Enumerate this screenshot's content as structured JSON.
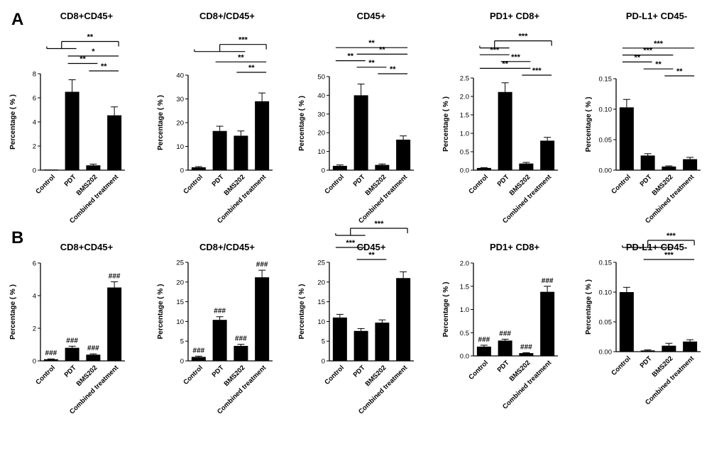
{
  "panels": [
    {
      "letter": "A"
    },
    {
      "letter": "B"
    }
  ],
  "chart_data": [
    {
      "panel": "A",
      "type": "bar",
      "title": "CD8+CD45+",
      "ylabel": "Percentage ( % )",
      "categories": [
        "Control",
        "PDT",
        "BMS202",
        "Combined treatment"
      ],
      "values": [
        0.05,
        6.5,
        0.4,
        4.55
      ],
      "errors": [
        0,
        1.0,
        0.1,
        0.7
      ],
      "ylim": [
        0,
        8
      ],
      "yticks": [
        "0",
        "2",
        "4",
        "6",
        "8"
      ],
      "bar_labels": [
        "",
        "",
        "",
        ""
      ],
      "comparisons": [
        {
          "from": 0,
          "to": 1,
          "to2": 3,
          "label": "**"
        },
        {
          "from": 1,
          "to": 3,
          "label": "*"
        },
        {
          "from": 1,
          "to": 2,
          "label": "**"
        },
        {
          "from": 2,
          "to": 3,
          "label": "**"
        }
      ]
    },
    {
      "panel": "A",
      "type": "bar",
      "title": "CD8+/CD45+",
      "ylabel": "Percentage ( % )",
      "categories": [
        "Control",
        "PDT",
        "BMS202",
        "Combined treatment"
      ],
      "values": [
        1.2,
        16.5,
        14.5,
        29
      ],
      "errors": [
        0.3,
        2.0,
        2.0,
        3.5
      ],
      "ylim": [
        0,
        40
      ],
      "yticks": [
        "0",
        "10",
        "20",
        "30",
        "40"
      ],
      "bar_labels": [
        "",
        "",
        "",
        ""
      ],
      "comparisons": [
        {
          "from": 0,
          "to": 2,
          "to2": 3,
          "label": "***"
        },
        {
          "from": 1,
          "to": 3,
          "label": "**"
        },
        {
          "from": 2,
          "to": 3,
          "label": "**"
        }
      ]
    },
    {
      "panel": "A",
      "type": "bar",
      "title": "CD45+",
      "ylabel": "Percentage ( % )",
      "categories": [
        "Control",
        "PDT",
        "BMS202",
        "Combined treatment"
      ],
      "values": [
        2.3,
        40,
        2.8,
        16.3
      ],
      "errors": [
        0.5,
        6.0,
        0.5,
        2.0
      ],
      "ylim": [
        0,
        50
      ],
      "yticks": [
        "0",
        "10",
        "20",
        "30",
        "40",
        "50"
      ],
      "bar_labels": [
        "",
        "",
        "",
        ""
      ],
      "comparisons": [
        {
          "from": 0,
          "to": 3,
          "label": "**"
        },
        {
          "from": 1,
          "to": 3,
          "label": "**"
        },
        {
          "from": 0,
          "to": 1,
          "label": "**"
        },
        {
          "from": 1,
          "to": 2,
          "label": "**"
        },
        {
          "from": 2,
          "to": 3,
          "label": "**"
        }
      ]
    },
    {
      "panel": "A",
      "type": "bar",
      "title": "PD1+ CD8+",
      "ylabel": "Percentage ( % )",
      "categories": [
        "Control",
        "PDT",
        "BMS202",
        "Combined treatment"
      ],
      "values": [
        0.06,
        2.12,
        0.18,
        0.8
      ],
      "errors": [
        0.01,
        0.25,
        0.03,
        0.09
      ],
      "ylim": [
        0,
        2.5
      ],
      "yticks": [
        "0.0",
        "0.5",
        "1.0",
        "1.5",
        "2.0",
        "2.5"
      ],
      "bar_labels": [
        "",
        "",
        "",
        ""
      ],
      "comparisons": [
        {
          "from": 0,
          "to": 1,
          "to2": 3,
          "label": "***"
        },
        {
          "from": 0,
          "to": 1,
          "label": "***"
        },
        {
          "from": 1,
          "to": 2,
          "label": "***"
        },
        {
          "from": 0,
          "to": 2,
          "label": "**"
        },
        {
          "from": 2,
          "to": 3,
          "label": "***"
        }
      ]
    },
    {
      "panel": "A",
      "type": "bar",
      "title": "PD-L1+  CD45-",
      "ylabel": "Percentage ( % )",
      "categories": [
        "Control",
        "PDT",
        "BMS202",
        "Combined treatment"
      ],
      "values": [
        0.103,
        0.024,
        0.006,
        0.018
      ],
      "errors": [
        0.013,
        0.003,
        0.001,
        0.003
      ],
      "ylim": [
        0,
        0.15
      ],
      "yticks": [
        "0.00",
        "0.05",
        "0.10",
        "0.15"
      ],
      "bar_labels": [
        "",
        "",
        "",
        ""
      ],
      "comparisons": [
        {
          "from": 0,
          "to": 3,
          "label": "***"
        },
        {
          "from": 0,
          "to": 2,
          "label": "***"
        },
        {
          "from": 0,
          "to": 1,
          "label": "**"
        },
        {
          "from": 1,
          "to": 2,
          "label": "**"
        },
        {
          "from": 2,
          "to": 3,
          "label": "**"
        }
      ]
    },
    {
      "panel": "B",
      "type": "bar",
      "title": "CD8+CD45+",
      "ylabel": "Percentage ( % )",
      "categories": [
        "Control",
        "PDT",
        "BMS202",
        "Combined treatment"
      ],
      "values": [
        0.1,
        0.8,
        0.38,
        4.5
      ],
      "errors": [
        0.02,
        0.1,
        0.05,
        0.35
      ],
      "ylim": [
        0,
        6
      ],
      "yticks": [
        "0",
        "2",
        "4",
        "6"
      ],
      "bar_labels": [
        "###",
        "###",
        "###",
        "###"
      ],
      "comparisons": []
    },
    {
      "panel": "B",
      "type": "bar",
      "title": "CD8+/CD45+",
      "ylabel": "Percentage ( % )",
      "categories": [
        "Control",
        "PDT",
        "BMS202",
        "Combined treatment"
      ],
      "values": [
        1.0,
        10.4,
        3.8,
        21.2
      ],
      "errors": [
        0.2,
        0.8,
        0.4,
        1.8
      ],
      "ylim": [
        0,
        25
      ],
      "yticks": [
        "0",
        "5",
        "10",
        "15",
        "20",
        "25"
      ],
      "bar_labels": [
        "###",
        "###",
        "###",
        "###"
      ],
      "comparisons": []
    },
    {
      "panel": "B",
      "type": "bar",
      "title": "CD45+",
      "ylabel": "Percentage ( % )",
      "categories": [
        "Control",
        "PDT",
        "BMS202",
        "Combined treatment"
      ],
      "values": [
        11,
        7.6,
        9.7,
        21
      ],
      "errors": [
        0.8,
        0.6,
        0.7,
        1.6
      ],
      "ylim": [
        0,
        25
      ],
      "yticks": [
        "0",
        "5",
        "10",
        "15",
        "20",
        "25"
      ],
      "bar_labels": [
        "",
        "",
        "",
        ""
      ],
      "comparisons": [
        {
          "from": 0,
          "to": 1,
          "to2": 3,
          "label": "***"
        },
        {
          "from": 0,
          "to": 1,
          "label": "***"
        },
        {
          "from": 1,
          "to": 2,
          "label": "**"
        }
      ]
    },
    {
      "panel": "B",
      "type": "bar",
      "title": "PD1+ CD8+",
      "ylabel": "Percentage ( % )",
      "categories": [
        "Control",
        "PDT",
        "BMS202",
        "Combined treatment"
      ],
      "values": [
        0.2,
        0.33,
        0.06,
        1.38
      ],
      "errors": [
        0.03,
        0.03,
        0.01,
        0.12
      ],
      "ylim": [
        0,
        2.0
      ],
      "yticks": [
        "0.0",
        "0.5",
        "1.0",
        "1.5",
        "2.0"
      ],
      "bar_labels": [
        "###",
        "###",
        "###",
        "###"
      ],
      "comparisons": []
    },
    {
      "panel": "B",
      "type": "bar",
      "title": "PD-L1+  CD45-",
      "ylabel": "Percentage ( % )",
      "categories": [
        "Control",
        "PDT",
        "BMS202",
        "Combined treatment"
      ],
      "values": [
        0.1,
        0.002,
        0.01,
        0.017
      ],
      "errors": [
        0.008,
        0.001,
        0.004,
        0.003
      ],
      "ylim": [
        0,
        0.15
      ],
      "yticks": [
        "0.00",
        "0.05",
        "0.10",
        "0.15"
      ],
      "bar_labels": [
        "",
        "",
        "",
        ""
      ],
      "comparisons": [
        {
          "from": 0,
          "to": 2,
          "to2": 3,
          "label": "***"
        },
        {
          "from": 1,
          "to": 3,
          "label": "***"
        }
      ]
    }
  ]
}
